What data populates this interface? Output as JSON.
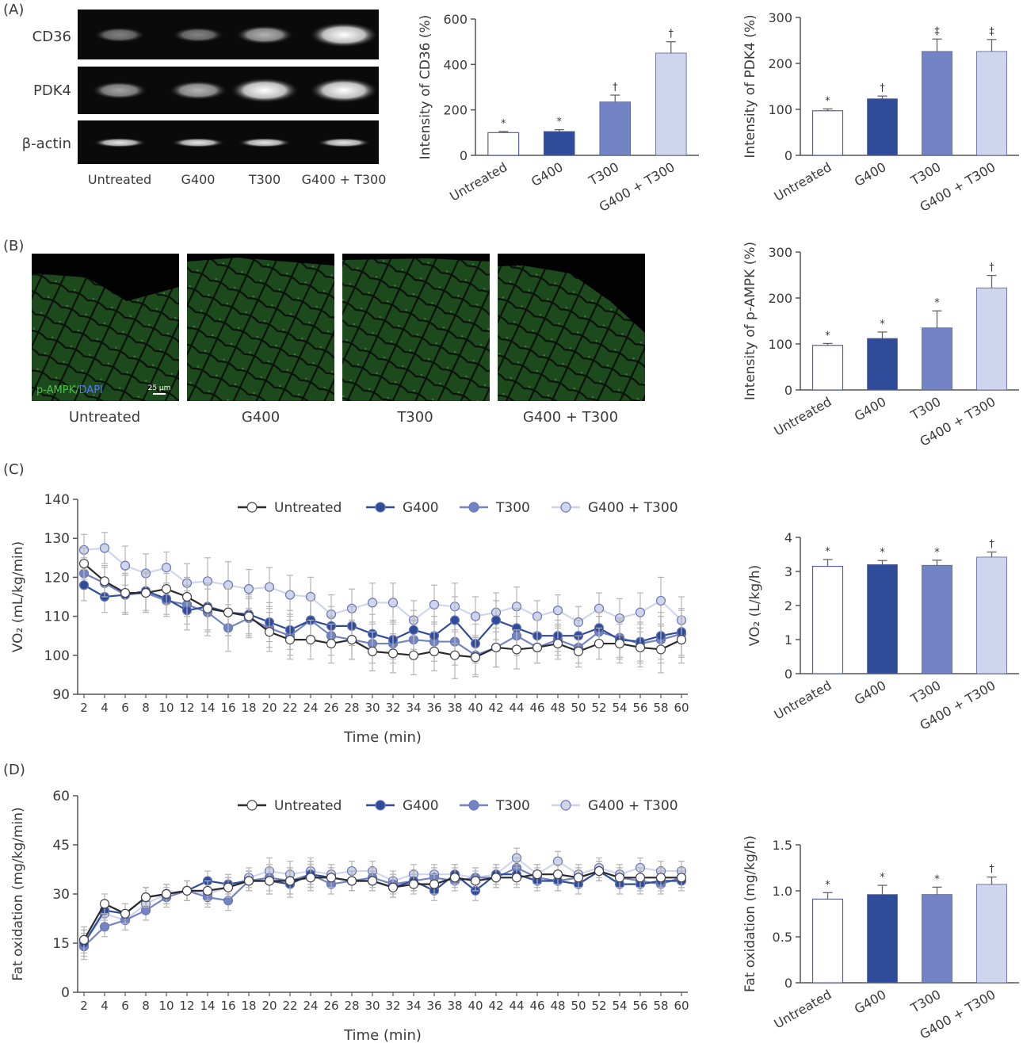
{
  "panels": {
    "a": "(A)",
    "b": "(B)",
    "c": "(C)",
    "d": "(D)"
  },
  "groups": [
    "Untreated",
    "G400",
    "T300",
    "G400 + T300"
  ],
  "colors": {
    "untreated": "#ffffff",
    "g400": "#2e4c9a",
    "t300": "#7384c4",
    "combo": "#cfd5ec",
    "axis": "#555555",
    "err": "#9a9a9a",
    "untreated_line": "#2a2a2a"
  },
  "blot": {
    "labels": [
      "CD36",
      "PDK4",
      "β-actin"
    ],
    "lanes": [
      "Untreated",
      "G400",
      "T300",
      "G400 + T300"
    ]
  },
  "micro": {
    "captions": [
      "Untreated",
      "G400",
      "T300",
      "G400 + T300"
    ],
    "stain_label_green": "p-AMPK/",
    "stain_label_blue": "DAPI",
    "scale_bar": "25 μm"
  },
  "chart_data": [
    {
      "id": "cd36",
      "type": "bar",
      "ylabel": "Intensity of CD36 (%)",
      "categories": [
        "Untreated",
        "G400",
        "T300",
        "G400 + T300"
      ],
      "values": [
        100,
        105,
        235,
        450
      ],
      "errors": [
        5,
        8,
        30,
        50
      ],
      "marks": [
        "*",
        "*",
        "†",
        "†"
      ],
      "ylim": [
        0,
        600
      ],
      "yticks": [
        0,
        200,
        400,
        600
      ]
    },
    {
      "id": "pdk4",
      "type": "bar",
      "ylabel": "Intensity of PDK4 (%)",
      "categories": [
        "Untreated",
        "G400",
        "T300",
        "G400 + T300"
      ],
      "values": [
        97,
        123,
        226,
        226
      ],
      "errors": [
        4,
        6,
        27,
        26
      ],
      "marks": [
        "*",
        "†",
        "‡",
        "‡"
      ],
      "ylim": [
        0,
        300
      ],
      "yticks": [
        0,
        100,
        200,
        300
      ]
    },
    {
      "id": "pampk",
      "type": "bar",
      "ylabel": "Intensity of p-AMPK (%)",
      "categories": [
        "Untreated",
        "G400",
        "T300",
        "G400 + T300"
      ],
      "values": [
        97,
        112,
        135,
        222
      ],
      "errors": [
        4,
        14,
        37,
        27
      ],
      "marks": [
        "*",
        "*",
        "*",
        "†"
      ],
      "ylim": [
        0,
        300
      ],
      "yticks": [
        0,
        100,
        200,
        300
      ]
    },
    {
      "id": "vo2_line",
      "type": "line",
      "ylabel": "VO₂ (mL/kg/min)",
      "xlabel": "Time (min)",
      "x": [
        2,
        4,
        6,
        8,
        10,
        12,
        14,
        16,
        18,
        20,
        22,
        24,
        26,
        28,
        30,
        32,
        34,
        36,
        38,
        40,
        42,
        44,
        46,
        48,
        50,
        52,
        54,
        56,
        58,
        60
      ],
      "ylim": [
        90,
        140
      ],
      "yticks": [
        90,
        100,
        110,
        120,
        130,
        140
      ],
      "series": [
        {
          "name": "Untreated",
          "values": [
            123.5,
            119,
            116,
            116,
            117,
            115,
            112,
            111,
            110,
            106,
            104,
            104,
            103,
            104,
            101,
            100.5,
            100,
            101,
            100,
            99.5,
            102,
            101.5,
            102,
            103,
            101,
            103,
            103,
            102,
            101.5,
            104
          ]
        },
        {
          "name": "G400",
          "values": [
            118,
            115,
            115.5,
            116.5,
            114.5,
            111.5,
            112.5,
            111,
            110.5,
            108.5,
            106.5,
            109,
            107.5,
            107.5,
            105.5,
            104,
            106.5,
            105,
            109,
            103,
            109,
            107,
            105,
            105,
            105,
            107,
            104,
            103.5,
            105,
            106
          ]
        },
        {
          "name": "T300",
          "values": [
            121,
            118.5,
            115.5,
            116,
            114,
            113,
            111,
            107,
            109.5,
            107,
            105,
            109,
            105,
            104,
            103,
            103,
            104,
            103.5,
            103.5,
            100,
            102,
            105,
            102,
            104,
            102,
            106,
            104.5,
            103,
            104,
            105.5
          ]
        },
        {
          "name": "G400 + T300",
          "values": [
            127,
            127.5,
            123,
            121,
            122.5,
            118.5,
            119,
            118,
            117,
            117.5,
            115.5,
            115,
            110.5,
            112,
            113.5,
            113.5,
            109,
            113,
            112.5,
            110,
            111,
            112.5,
            110,
            111.5,
            108.5,
            112,
            109.5,
            111,
            114,
            109
          ]
        }
      ],
      "errors": [
        4,
        4,
        5,
        5,
        4,
        5,
        6,
        6,
        5,
        5,
        5,
        5,
        5,
        5,
        5,
        5,
        5,
        5,
        6,
        5,
        5,
        5,
        4,
        4,
        4,
        4,
        5,
        5,
        6,
        6
      ]
    },
    {
      "id": "vo2_bar",
      "type": "bar",
      "ylabel": "VO₂ (L/kg/h)",
      "categories": [
        "Untreated",
        "G400",
        "T300",
        "G400 + T300"
      ],
      "values": [
        3.15,
        3.2,
        3.18,
        3.42
      ],
      "errors": [
        0.2,
        0.12,
        0.15,
        0.15
      ],
      "marks": [
        "*",
        "*",
        "*",
        "†"
      ],
      "ylim": [
        0,
        4
      ],
      "yticks": [
        0,
        1,
        2,
        3,
        4
      ]
    },
    {
      "id": "fat_line",
      "type": "line",
      "ylabel": "Fat oxidation (mg/kg/min)",
      "xlabel": "Time (min)",
      "x": [
        2,
        4,
        6,
        8,
        10,
        12,
        14,
        16,
        18,
        20,
        22,
        24,
        26,
        28,
        30,
        32,
        34,
        36,
        38,
        40,
        42,
        44,
        46,
        48,
        50,
        52,
        54,
        56,
        58,
        60
      ],
      "ylim": [
        0,
        60
      ],
      "yticks": [
        0,
        15,
        30,
        45,
        60
      ],
      "series": [
        {
          "name": "Untreated",
          "values": [
            16,
            27,
            24,
            29,
            30,
            31,
            31,
            32,
            34,
            34,
            34,
            35,
            35,
            34,
            34,
            32,
            33,
            33,
            35,
            34,
            35,
            35,
            36,
            36,
            35,
            37,
            35,
            35,
            35,
            35
          ]
        },
        {
          "name": "G400",
          "values": [
            15,
            25,
            24,
            29,
            30,
            31,
            34,
            33,
            34,
            34,
            33,
            36,
            35,
            34,
            34,
            32,
            34,
            31,
            36,
            31,
            36,
            36,
            34,
            34,
            33,
            37,
            33,
            33,
            34,
            34
          ]
        },
        {
          "name": "T300",
          "values": [
            14,
            20,
            22,
            25,
            29,
            31,
            29,
            28,
            34,
            35,
            34,
            36,
            33,
            34,
            35,
            33,
            34,
            35,
            34,
            35,
            35,
            38,
            35,
            34,
            35,
            37,
            35,
            34,
            33,
            35
          ]
        },
        {
          "name": "G400 + T300",
          "values": [
            15,
            24,
            22,
            27,
            30,
            31,
            30,
            32,
            35,
            37,
            36,
            37,
            36,
            37,
            37,
            34,
            36,
            36,
            36,
            35,
            36,
            41,
            36,
            40,
            36,
            38,
            36,
            38,
            37,
            37
          ]
        }
      ],
      "errors": [
        4,
        3,
        3,
        3,
        3,
        3,
        3,
        3,
        3,
        4,
        4,
        4,
        3,
        3,
        3,
        3,
        3,
        3,
        3,
        3,
        3,
        3,
        3,
        3,
        3,
        3,
        3,
        3,
        3,
        3
      ]
    },
    {
      "id": "fat_bar",
      "type": "bar",
      "ylabel": "Fat oxidation (mg/kg/h)",
      "categories": [
        "Untreated",
        "G400",
        "T300",
        "G400 + T300"
      ],
      "values": [
        0.91,
        0.96,
        0.96,
        1.07
      ],
      "errors": [
        0.07,
        0.1,
        0.08,
        0.08
      ],
      "marks": [
        "*",
        "*",
        "*",
        "†"
      ],
      "ylim": [
        0,
        1.5
      ],
      "yticks": [
        "0",
        "0.5",
        "1.0",
        "1.5"
      ]
    }
  ]
}
